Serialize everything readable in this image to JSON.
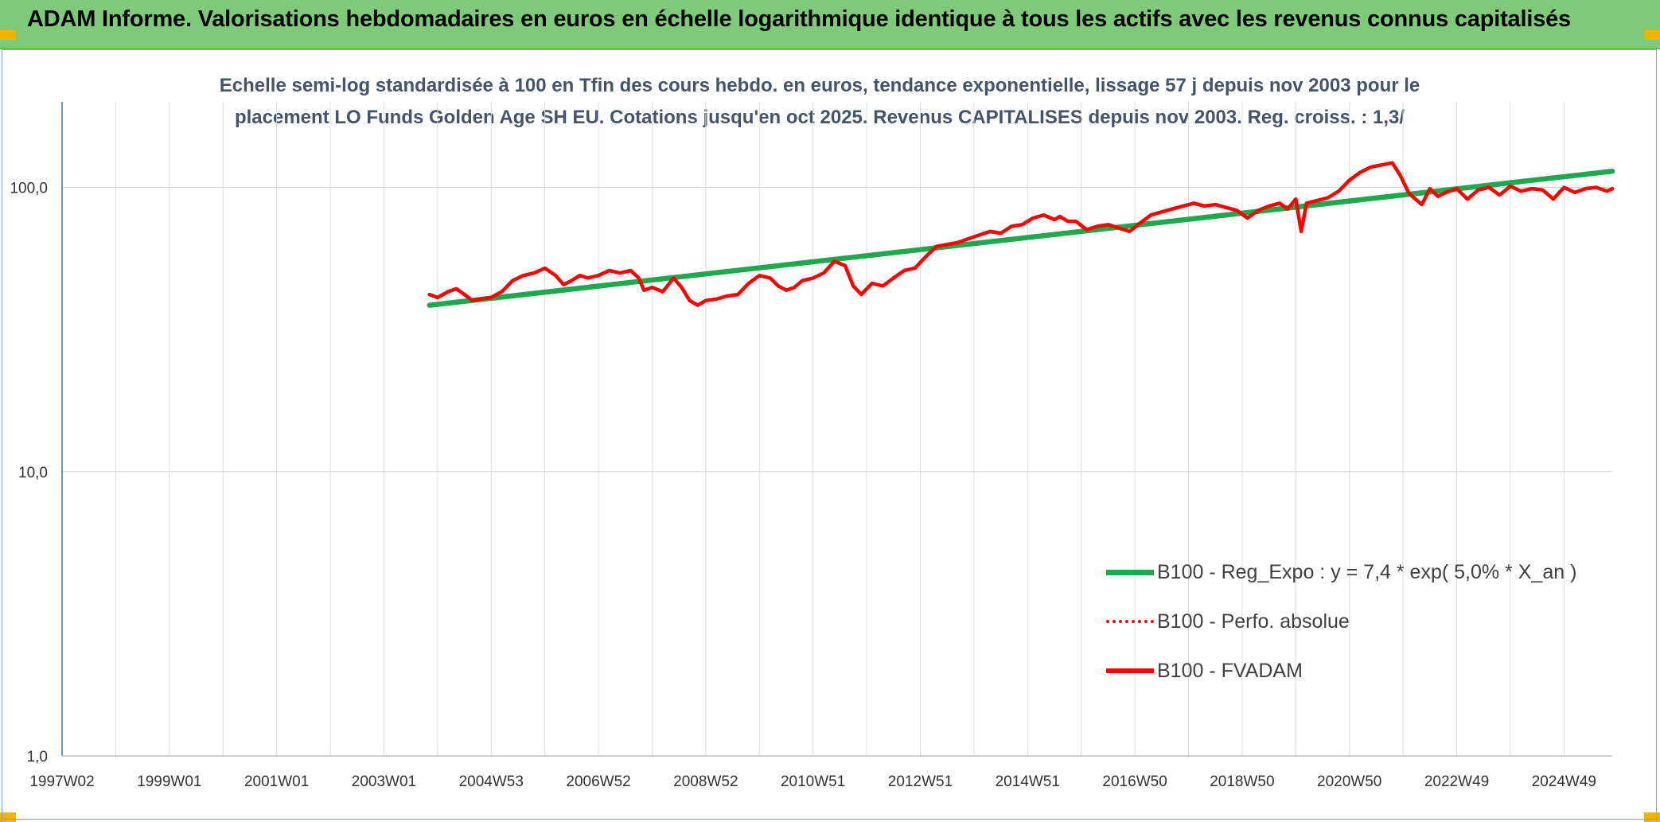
{
  "header": {
    "title": "ADAM Informe. Valorisations hebdomadaires en euros en échelle logarithmique identique à tous les actifs avec les revenus connus capitalisés"
  },
  "chart_data": {
    "type": "line",
    "title_lines": [
      "Echelle semi-log standardisée à 100 en Tfin des cours hebdo. en euros, tendance exponentielle, lissage 57 j depuis nov 2003 pour le",
      "placement LO Funds Golden Age SH EU. Cotations jusqu'en oct 2025. Revenus CAPITALISES depuis nov 2003. Reg. croiss. : 1,3/"
    ],
    "y_scale": "log",
    "ylim": [
      1,
      200
    ],
    "y_ticks": [
      {
        "value": 100,
        "label": "100,0"
      },
      {
        "value": 10,
        "label": "10,0"
      },
      {
        "value": 1,
        "label": "1,0"
      }
    ],
    "xlim": [
      1997.0,
      2025.9
    ],
    "x_ticks": [
      {
        "value": 1997.0,
        "label": "1997W02"
      },
      {
        "value": 1999.0,
        "label": "1999W01"
      },
      {
        "value": 2001.0,
        "label": "2001W01"
      },
      {
        "value": 2003.0,
        "label": "2003W01"
      },
      {
        "value": 2005.0,
        "label": "2004W53"
      },
      {
        "value": 2007.0,
        "label": "2006W52"
      },
      {
        "value": 2009.0,
        "label": "2008W52"
      },
      {
        "value": 2011.0,
        "label": "2010W51"
      },
      {
        "value": 2013.0,
        "label": "2012W51"
      },
      {
        "value": 2015.0,
        "label": "2014W51"
      },
      {
        "value": 2017.0,
        "label": "2016W50"
      },
      {
        "value": 2019.0,
        "label": "2018W50"
      },
      {
        "value": 2021.0,
        "label": "2020W50"
      },
      {
        "value": 2023.0,
        "label": "2022W49"
      },
      {
        "value": 2025.0,
        "label": "2024W49"
      }
    ],
    "grid": true,
    "legend": "right",
    "series": [
      {
        "name": "B100 - Reg_Expo : y = 7,4 * exp( 5,0% *  X_an )",
        "color": "#1fa84e",
        "style": "solid",
        "x": [
          2003.85,
          2025.9
        ],
        "y": [
          38.5,
          114
        ]
      },
      {
        "name": "B100 - Perfo. absolue",
        "color": "#ff0000",
        "style": "dotted",
        "x": [],
        "y": []
      },
      {
        "name": "B100 - FVADAM",
        "color": "#ff0000",
        "style": "solid",
        "x": [
          2003.85,
          2004.0,
          2004.2,
          2004.35,
          2004.5,
          2004.65,
          2004.8,
          2005.0,
          2005.2,
          2005.4,
          2005.6,
          2005.8,
          2006.0,
          2006.2,
          2006.35,
          2006.5,
          2006.65,
          2006.8,
          2007.0,
          2007.2,
          2007.4,
          2007.6,
          2007.75,
          2007.85,
          2008.0,
          2008.2,
          2008.4,
          2008.55,
          2008.7,
          2008.85,
          2009.0,
          2009.2,
          2009.4,
          2009.6,
          2009.8,
          2010.0,
          2010.2,
          2010.35,
          2010.5,
          2010.65,
          2010.8,
          2011.0,
          2011.2,
          2011.4,
          2011.6,
          2011.75,
          2011.9,
          2012.1,
          2012.3,
          2012.5,
          2012.7,
          2012.9,
          2013.1,
          2013.3,
          2013.5,
          2013.7,
          2013.9,
          2014.1,
          2014.3,
          2014.5,
          2014.7,
          2014.9,
          2015.1,
          2015.3,
          2015.5,
          2015.6,
          2015.75,
          2015.9,
          2016.1,
          2016.3,
          2016.5,
          2016.7,
          2016.9,
          2017.1,
          2017.3,
          2017.5,
          2017.7,
          2017.9,
          2018.1,
          2018.3,
          2018.5,
          2018.7,
          2018.9,
          2019.1,
          2019.3,
          2019.5,
          2019.7,
          2019.85,
          2020.0,
          2020.1,
          2020.2,
          2020.4,
          2020.6,
          2020.8,
          2021.0,
          2021.2,
          2021.4,
          2021.6,
          2021.8,
          2021.95,
          2022.1,
          2022.2,
          2022.35,
          2022.5,
          2022.65,
          2022.8,
          2023.0,
          2023.2,
          2023.4,
          2023.6,
          2023.8,
          2024.0,
          2024.2,
          2024.4,
          2024.6,
          2024.8,
          2025.0,
          2025.2,
          2025.4,
          2025.6,
          2025.8,
          2025.9
        ],
        "y": [
          42,
          41,
          43,
          44,
          42,
          40,
          40.5,
          41,
          43,
          47,
          49,
          50,
          52,
          49,
          45.5,
          47,
          49,
          48,
          49,
          51,
          50,
          51,
          48,
          43.5,
          44.5,
          43,
          48,
          44.5,
          40,
          38.5,
          40,
          40.5,
          41.5,
          42,
          46,
          49,
          48,
          45,
          43.5,
          44.5,
          47,
          48,
          50,
          55,
          53,
          45,
          42,
          46,
          45,
          48,
          51,
          52,
          57,
          62,
          63,
          64,
          66,
          68,
          70,
          69,
          73,
          74,
          78,
          80,
          77,
          79,
          76,
          76,
          71,
          73,
          74,
          72,
          70,
          75,
          80,
          82,
          84,
          86,
          88,
          86,
          87,
          85,
          83,
          78,
          83,
          86,
          88,
          84,
          91,
          70,
          88,
          90,
          92,
          97,
          106,
          113,
          118,
          120,
          122,
          110,
          96,
          92,
          87,
          99,
          93,
          96,
          99,
          91,
          98,
          100,
          94,
          101,
          97,
          99,
          98,
          91,
          100,
          96,
          99,
          100,
          97,
          99
        ]
      }
    ]
  }
}
